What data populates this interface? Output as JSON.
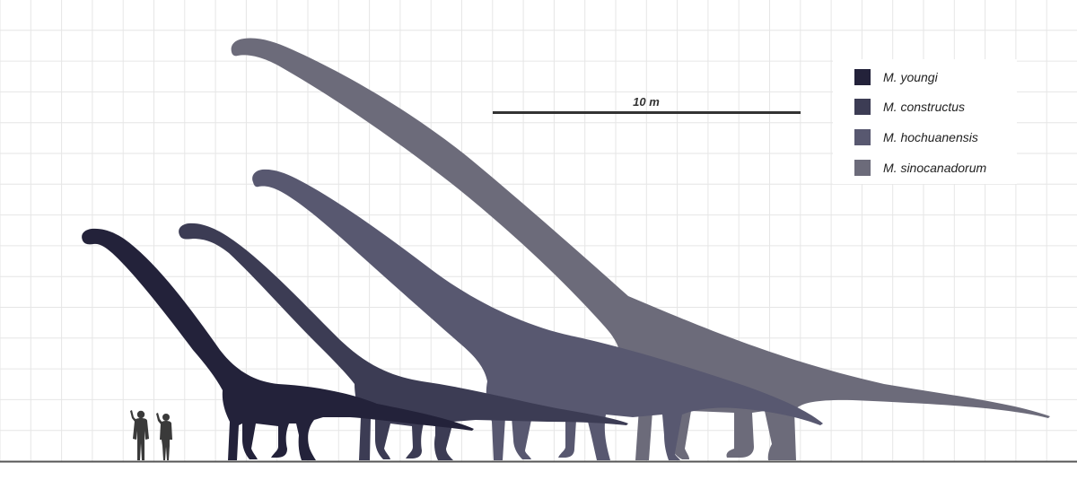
{
  "scale_bar": {
    "label": "10 m",
    "color": "#333333"
  },
  "species": [
    {
      "name": "M. youngi",
      "color": "#23223a"
    },
    {
      "name": "M. constructus",
      "color": "#3c3c54"
    },
    {
      "name": "M. hochuanensis",
      "color": "#585870"
    },
    {
      "name": "M. sinocanadorum",
      "color": "#6c6b7a"
    }
  ],
  "humans": {
    "color": "#3a3a3a"
  },
  "ground": {
    "color": "#555555"
  },
  "grid": {
    "color": "#e6e6e6"
  }
}
